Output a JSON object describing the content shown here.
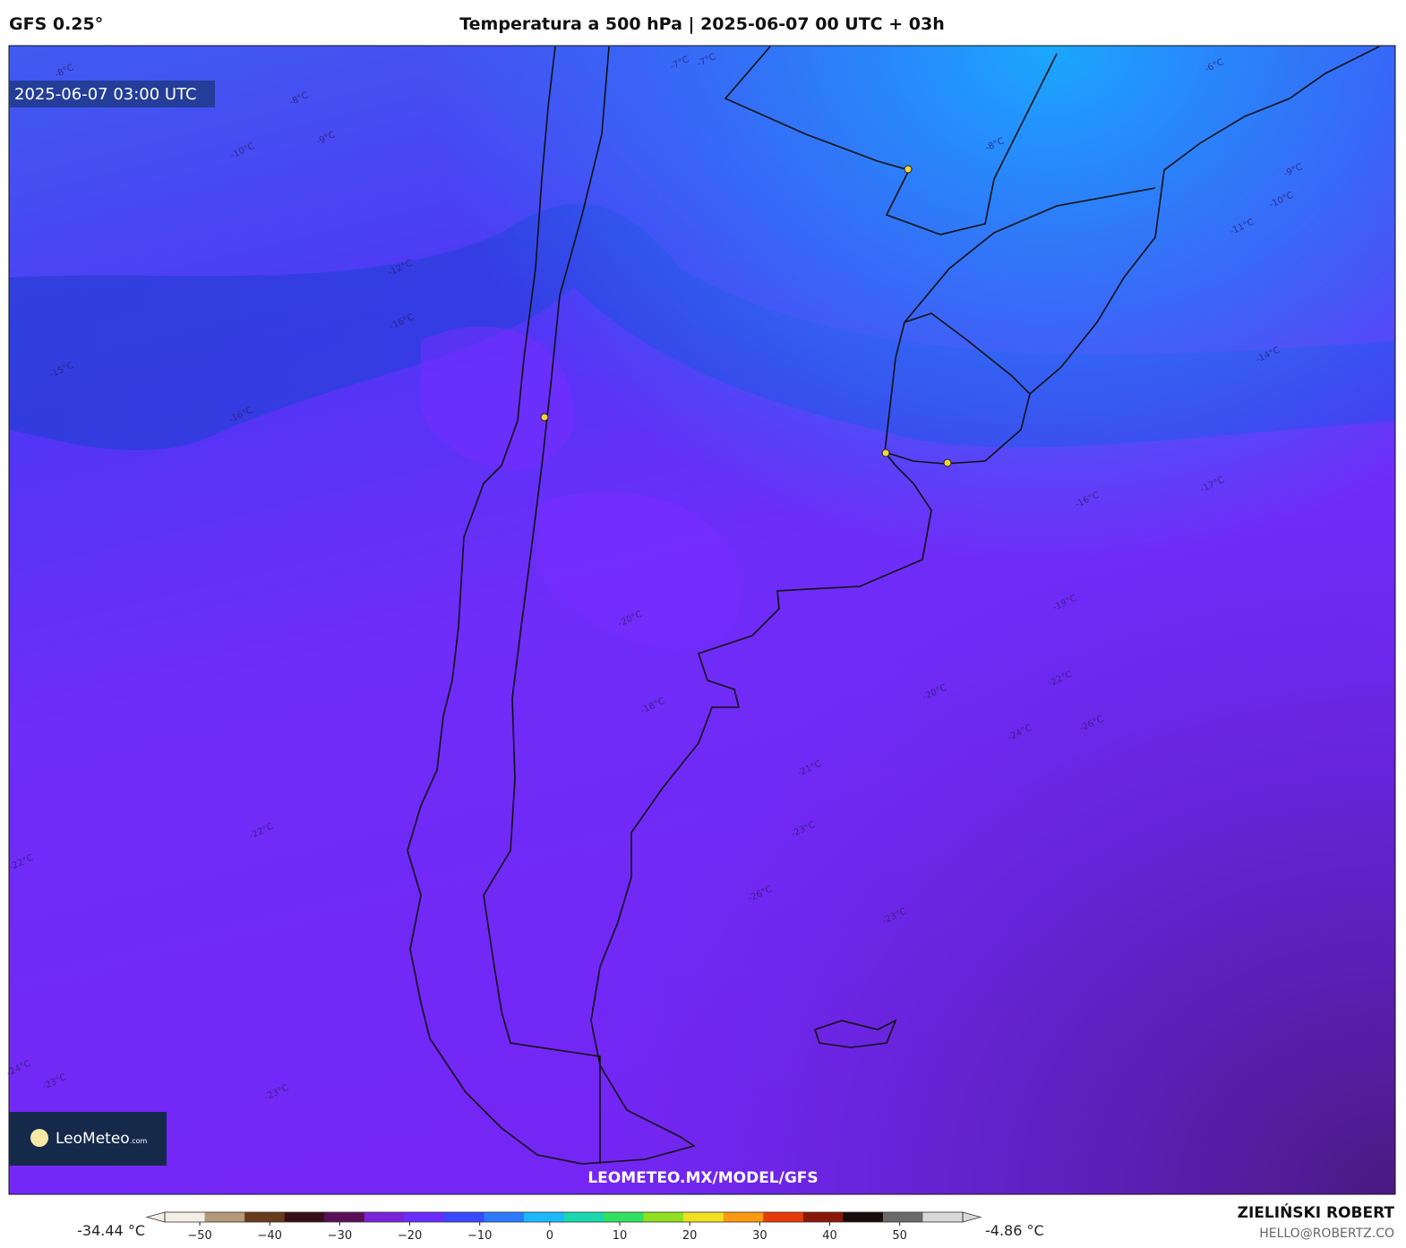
{
  "header": {
    "model": "GFS 0.25°",
    "title": "Temperatura a 500 hPa | 2025-06-07 00 UTC + 03h"
  },
  "map": {
    "valid_time": "2025-06-07 03:00 UTC",
    "watermark": "LEOMETEO.MX/MODEL/GFS",
    "logo": "LeoMeteo",
    "logo_suffix": ".com",
    "contour_labels": [
      "-8°C",
      "-8°C",
      "-9°C",
      "-10°C",
      "-12°C",
      "-16°C",
      "-15°C",
      "-16°C",
      "-7°C",
      "-7°C",
      "-8°C",
      "-6°C",
      "-9°C",
      "-10°C",
      "-11°C",
      "-14°C",
      "-16°C",
      "-17°C",
      "-19°C",
      "-20°C",
      "-18°C",
      "-20°C",
      "-22°C",
      "-24°C",
      "-26°C",
      "-21°C",
      "-23°C",
      "-22°C",
      "-22°C",
      "-26°C",
      "-23°C",
      "-24°C",
      "-23°C",
      "-23°C"
    ]
  },
  "colorbar": {
    "min_label": "-34.44 °C",
    "max_label": "-4.86 °C",
    "lim": [
      -55,
      59
    ],
    "ticks": [
      {
        "value": -50,
        "label": "−50"
      },
      {
        "value": -40,
        "label": "−40"
      },
      {
        "value": -30,
        "label": "−30"
      },
      {
        "value": -20,
        "label": "−20"
      },
      {
        "value": -10,
        "label": "−10"
      },
      0,
      10,
      20,
      30,
      40,
      50
    ],
    "colors": [
      "#f4efe4",
      "#b49a78",
      "#6a3a1c",
      "#3a0e16",
      "#5a0f58",
      "#7a22d8",
      "#6a2cff",
      "#3a48ff",
      "#2a7aff",
      "#1ab8ff",
      "#18d8b0",
      "#30e060",
      "#90e020",
      "#f0e020",
      "#ff9a10",
      "#e83a08",
      "#8a1606",
      "#1a0a0a",
      "#6a6a6a",
      "#d8d8d8"
    ]
  },
  "footer": {
    "author": "ZIELIŃSKI ROBERT",
    "email": "HELLO@ROBERTZ.CO"
  }
}
